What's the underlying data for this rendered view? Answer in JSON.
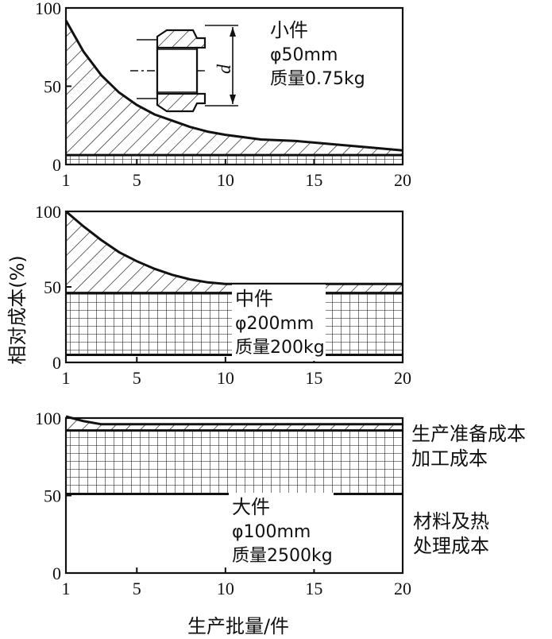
{
  "chart_data": [
    {
      "type": "area",
      "name": "small",
      "ylim": [
        0,
        100
      ],
      "xlim": [
        1,
        20
      ],
      "yticks": [
        "100",
        "50",
        "0"
      ],
      "xticks": [
        "1",
        "5",
        "10",
        "15",
        "20"
      ],
      "annotation": [
        "小件",
        "φ50mm",
        "质量0.75kg"
      ],
      "diagram_label": "d",
      "layers": {
        "material_processing": 0,
        "processing": 6,
        "setup_curve": [
          {
            "x": 1,
            "y": 92
          },
          {
            "x": 2,
            "y": 72
          },
          {
            "x": 3,
            "y": 57
          },
          {
            "x": 4,
            "y": 46
          },
          {
            "x": 5,
            "y": 38
          },
          {
            "x": 6,
            "y": 32
          },
          {
            "x": 7,
            "y": 28
          },
          {
            "x": 8,
            "y": 24
          },
          {
            "x": 9,
            "y": 21
          },
          {
            "x": 10,
            "y": 19
          },
          {
            "x": 12,
            "y": 16
          },
          {
            "x": 14,
            "y": 15
          },
          {
            "x": 16,
            "y": 13
          },
          {
            "x": 18,
            "y": 11
          },
          {
            "x": 20,
            "y": 9
          }
        ]
      }
    },
    {
      "type": "area",
      "name": "medium",
      "ylim": [
        0,
        100
      ],
      "xlim": [
        1,
        20
      ],
      "yticks": [
        "100",
        "50",
        "0"
      ],
      "xticks": [
        "1",
        "5",
        "10",
        "15",
        "20"
      ],
      "annotation": [
        "中件",
        "φ200mm",
        "质量200kg"
      ],
      "layers": {
        "material_processing": 5,
        "processing": 46,
        "setup_curve": [
          {
            "x": 1,
            "y": 100
          },
          {
            "x": 2,
            "y": 90
          },
          {
            "x": 3,
            "y": 81
          },
          {
            "x": 4,
            "y": 73
          },
          {
            "x": 5,
            "y": 67
          },
          {
            "x": 6,
            "y": 62
          },
          {
            "x": 7,
            "y": 58
          },
          {
            "x": 8,
            "y": 55
          },
          {
            "x": 9,
            "y": 53
          },
          {
            "x": 10,
            "y": 52
          },
          {
            "x": 20,
            "y": 52
          }
        ]
      }
    },
    {
      "type": "area",
      "name": "large",
      "ylim": [
        0,
        100
      ],
      "xlim": [
        1,
        20
      ],
      "yticks": [
        "100",
        "50",
        "0"
      ],
      "xticks": [
        "1",
        "5",
        "10",
        "15",
        "20"
      ],
      "annotation": [
        "大件",
        "φ100mm",
        "质量2500kg"
      ],
      "layers": {
        "material_processing": 51,
        "processing": 92,
        "setup_curve": [
          {
            "x": 1,
            "y": 101
          },
          {
            "x": 2,
            "y": 98
          },
          {
            "x": 3,
            "y": 96
          },
          {
            "x": 20,
            "y": 96
          }
        ]
      }
    }
  ],
  "ylabel": "相对成本(%)",
  "xlabel": "生产批量/件",
  "legend": {
    "setup": "生产准备成本",
    "processing": "加工成本",
    "material": [
      "材料及热",
      "处理成本"
    ]
  }
}
